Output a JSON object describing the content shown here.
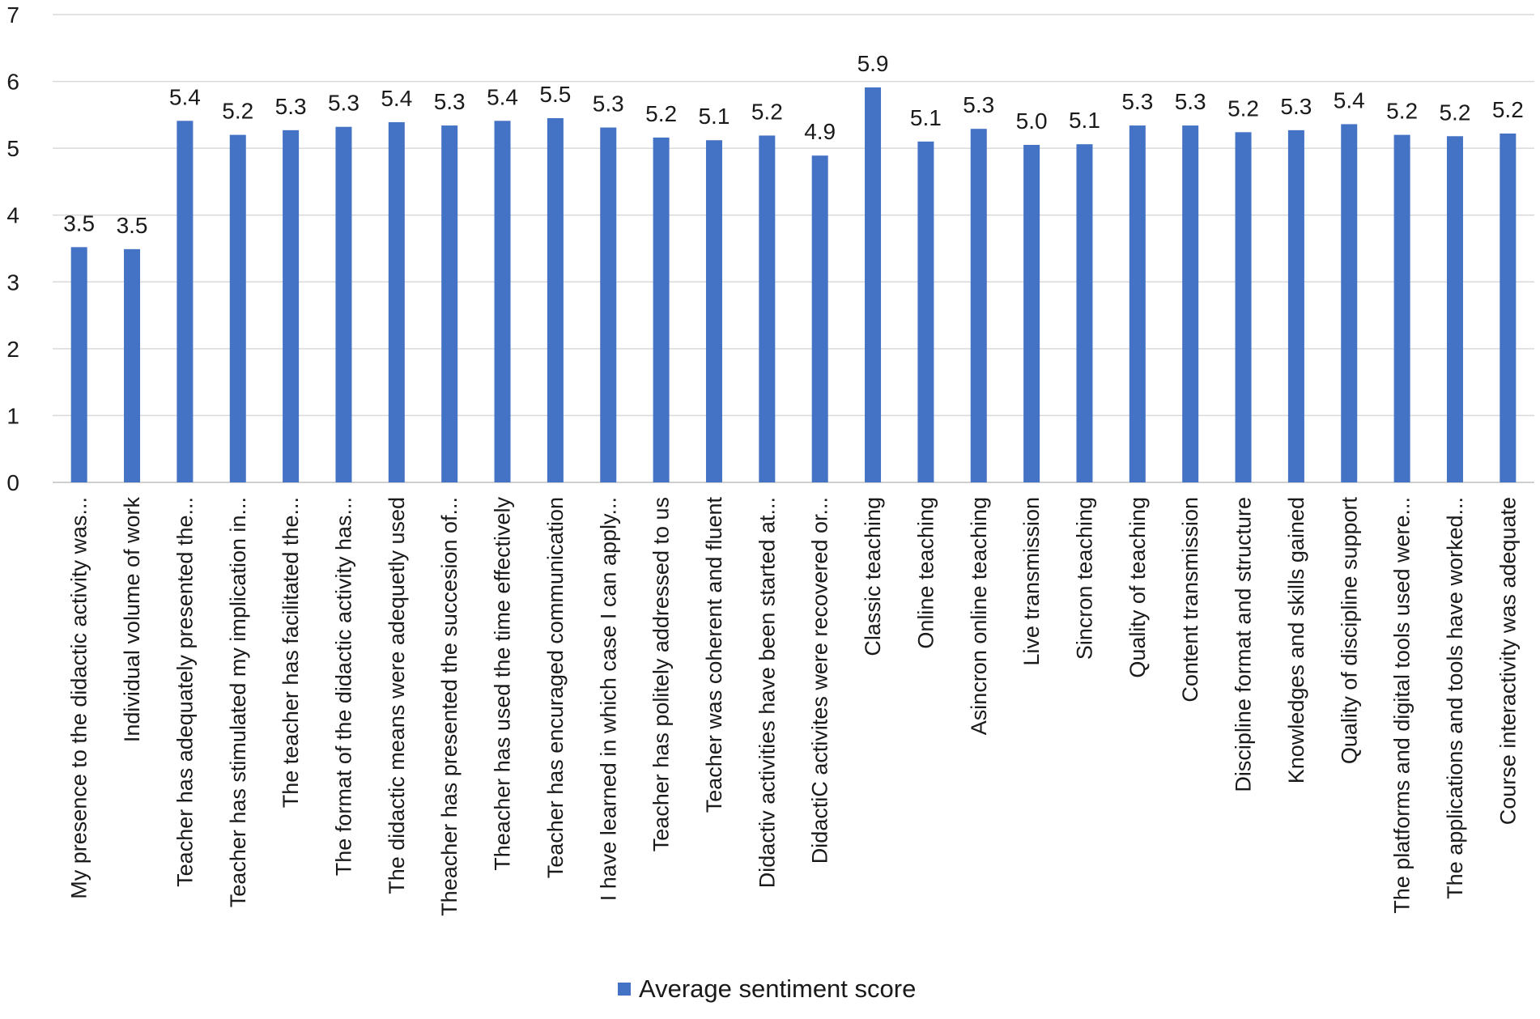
{
  "chart_data": {
    "type": "bar",
    "title": "",
    "xlabel": "",
    "ylabel": "",
    "ylim": [
      0,
      7
    ],
    "yticks": [
      "0",
      "1",
      "2",
      "3",
      "4",
      "5",
      "6",
      "7"
    ],
    "grid": true,
    "legend_position": "bottom",
    "bar_color": "#4472c4",
    "categories": [
      "My presence to the didactic activity was...",
      "Individual volume of work",
      "Teacher has adequately presented the...",
      "Teacher has stimulated my implication in...",
      "The teacher has facilitated the...",
      "The format of the didactic activity has...",
      "The didactic means were adequetly used",
      "Theacher has presented the succesion of...",
      "Theacher has used the time effectively",
      "Teacher has encuraged communication",
      "I have learned in which case I can apply...",
      "Teacher has politely addressed to us",
      "Teacher was coherent and fluent",
      "Didactiv activities have been started at...",
      "DidactiC activites were recovered or...",
      "Classic teaching",
      "Online teaching",
      "Asincron online teaching",
      "Live transmission",
      "Sincron teaching",
      "Quality of teaching",
      "Content transmission",
      "Discipline format and structure",
      "Knowledges and skills gained",
      "Quality of discipline support",
      "The platforms and digital tools used were...",
      "The applications and tools have worked...",
      "Course interactivity was adequate"
    ],
    "series": [
      {
        "name": "Average sentiment score",
        "values": [
          3.52,
          3.49,
          5.41,
          5.2,
          5.27,
          5.32,
          5.39,
          5.34,
          5.41,
          5.45,
          5.31,
          5.16,
          5.12,
          5.19,
          4.89,
          5.91,
          5.1,
          5.29,
          5.05,
          5.06,
          5.34,
          5.34,
          5.24,
          5.27,
          5.36,
          5.2,
          5.18,
          5.22
        ],
        "labels": [
          "3.5",
          "3.5",
          "5.4",
          "5.2",
          "5.3",
          "5.3",
          "5.4",
          "5.3",
          "5.4",
          "5.5",
          "5.3",
          "5.2",
          "5.1",
          "5.2",
          "4.9",
          "5.9",
          "5.1",
          "5.3",
          "5.0",
          "5.1",
          "5.3",
          "5.3",
          "5.2",
          "5.3",
          "5.4",
          "5.2",
          "5.2",
          "5.2"
        ]
      }
    ]
  }
}
